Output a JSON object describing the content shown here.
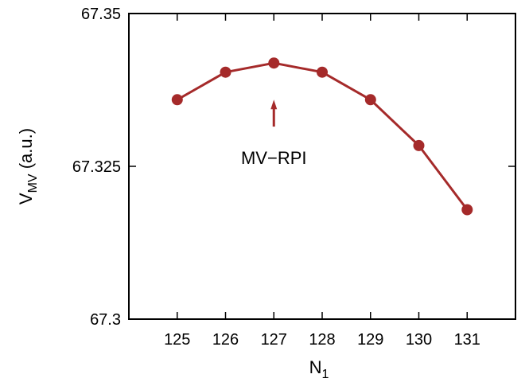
{
  "chart_data": {
    "type": "line",
    "title": "",
    "xlabel": {
      "main": "N",
      "sub": "1"
    },
    "ylabel": {
      "main": "V",
      "sub": "MV",
      "suffix": " (a.u.)"
    },
    "xlim": [
      124,
      132
    ],
    "ylim": [
      67.3,
      67.35
    ],
    "x_ticks": [
      {
        "value": 125,
        "label": "125"
      },
      {
        "value": 126,
        "label": "126"
      },
      {
        "value": 127,
        "label": "127"
      },
      {
        "value": 128,
        "label": "128"
      },
      {
        "value": 129,
        "label": "129"
      },
      {
        "value": 130,
        "label": "130"
      },
      {
        "value": 131,
        "label": "131"
      }
    ],
    "y_ticks": [
      {
        "value": 67.3,
        "label": "67.3"
      },
      {
        "value": 67.325,
        "label": "67.325"
      },
      {
        "value": 67.35,
        "label": "67.35"
      }
    ],
    "grid": false,
    "legend": "none",
    "color": "#a52a2a",
    "series": [
      {
        "x": [
          125,
          126,
          127,
          128,
          129,
          130,
          131
        ],
        "values": [
          67.3359,
          67.3404,
          67.3419,
          67.3404,
          67.3359,
          67.3284,
          67.3179
        ]
      }
    ],
    "annotations": [
      {
        "text": "MV−RPI",
        "arrow_x": 127,
        "arrow_from_y": 67.3315,
        "arrow_to_y": 67.3359
      }
    ]
  }
}
